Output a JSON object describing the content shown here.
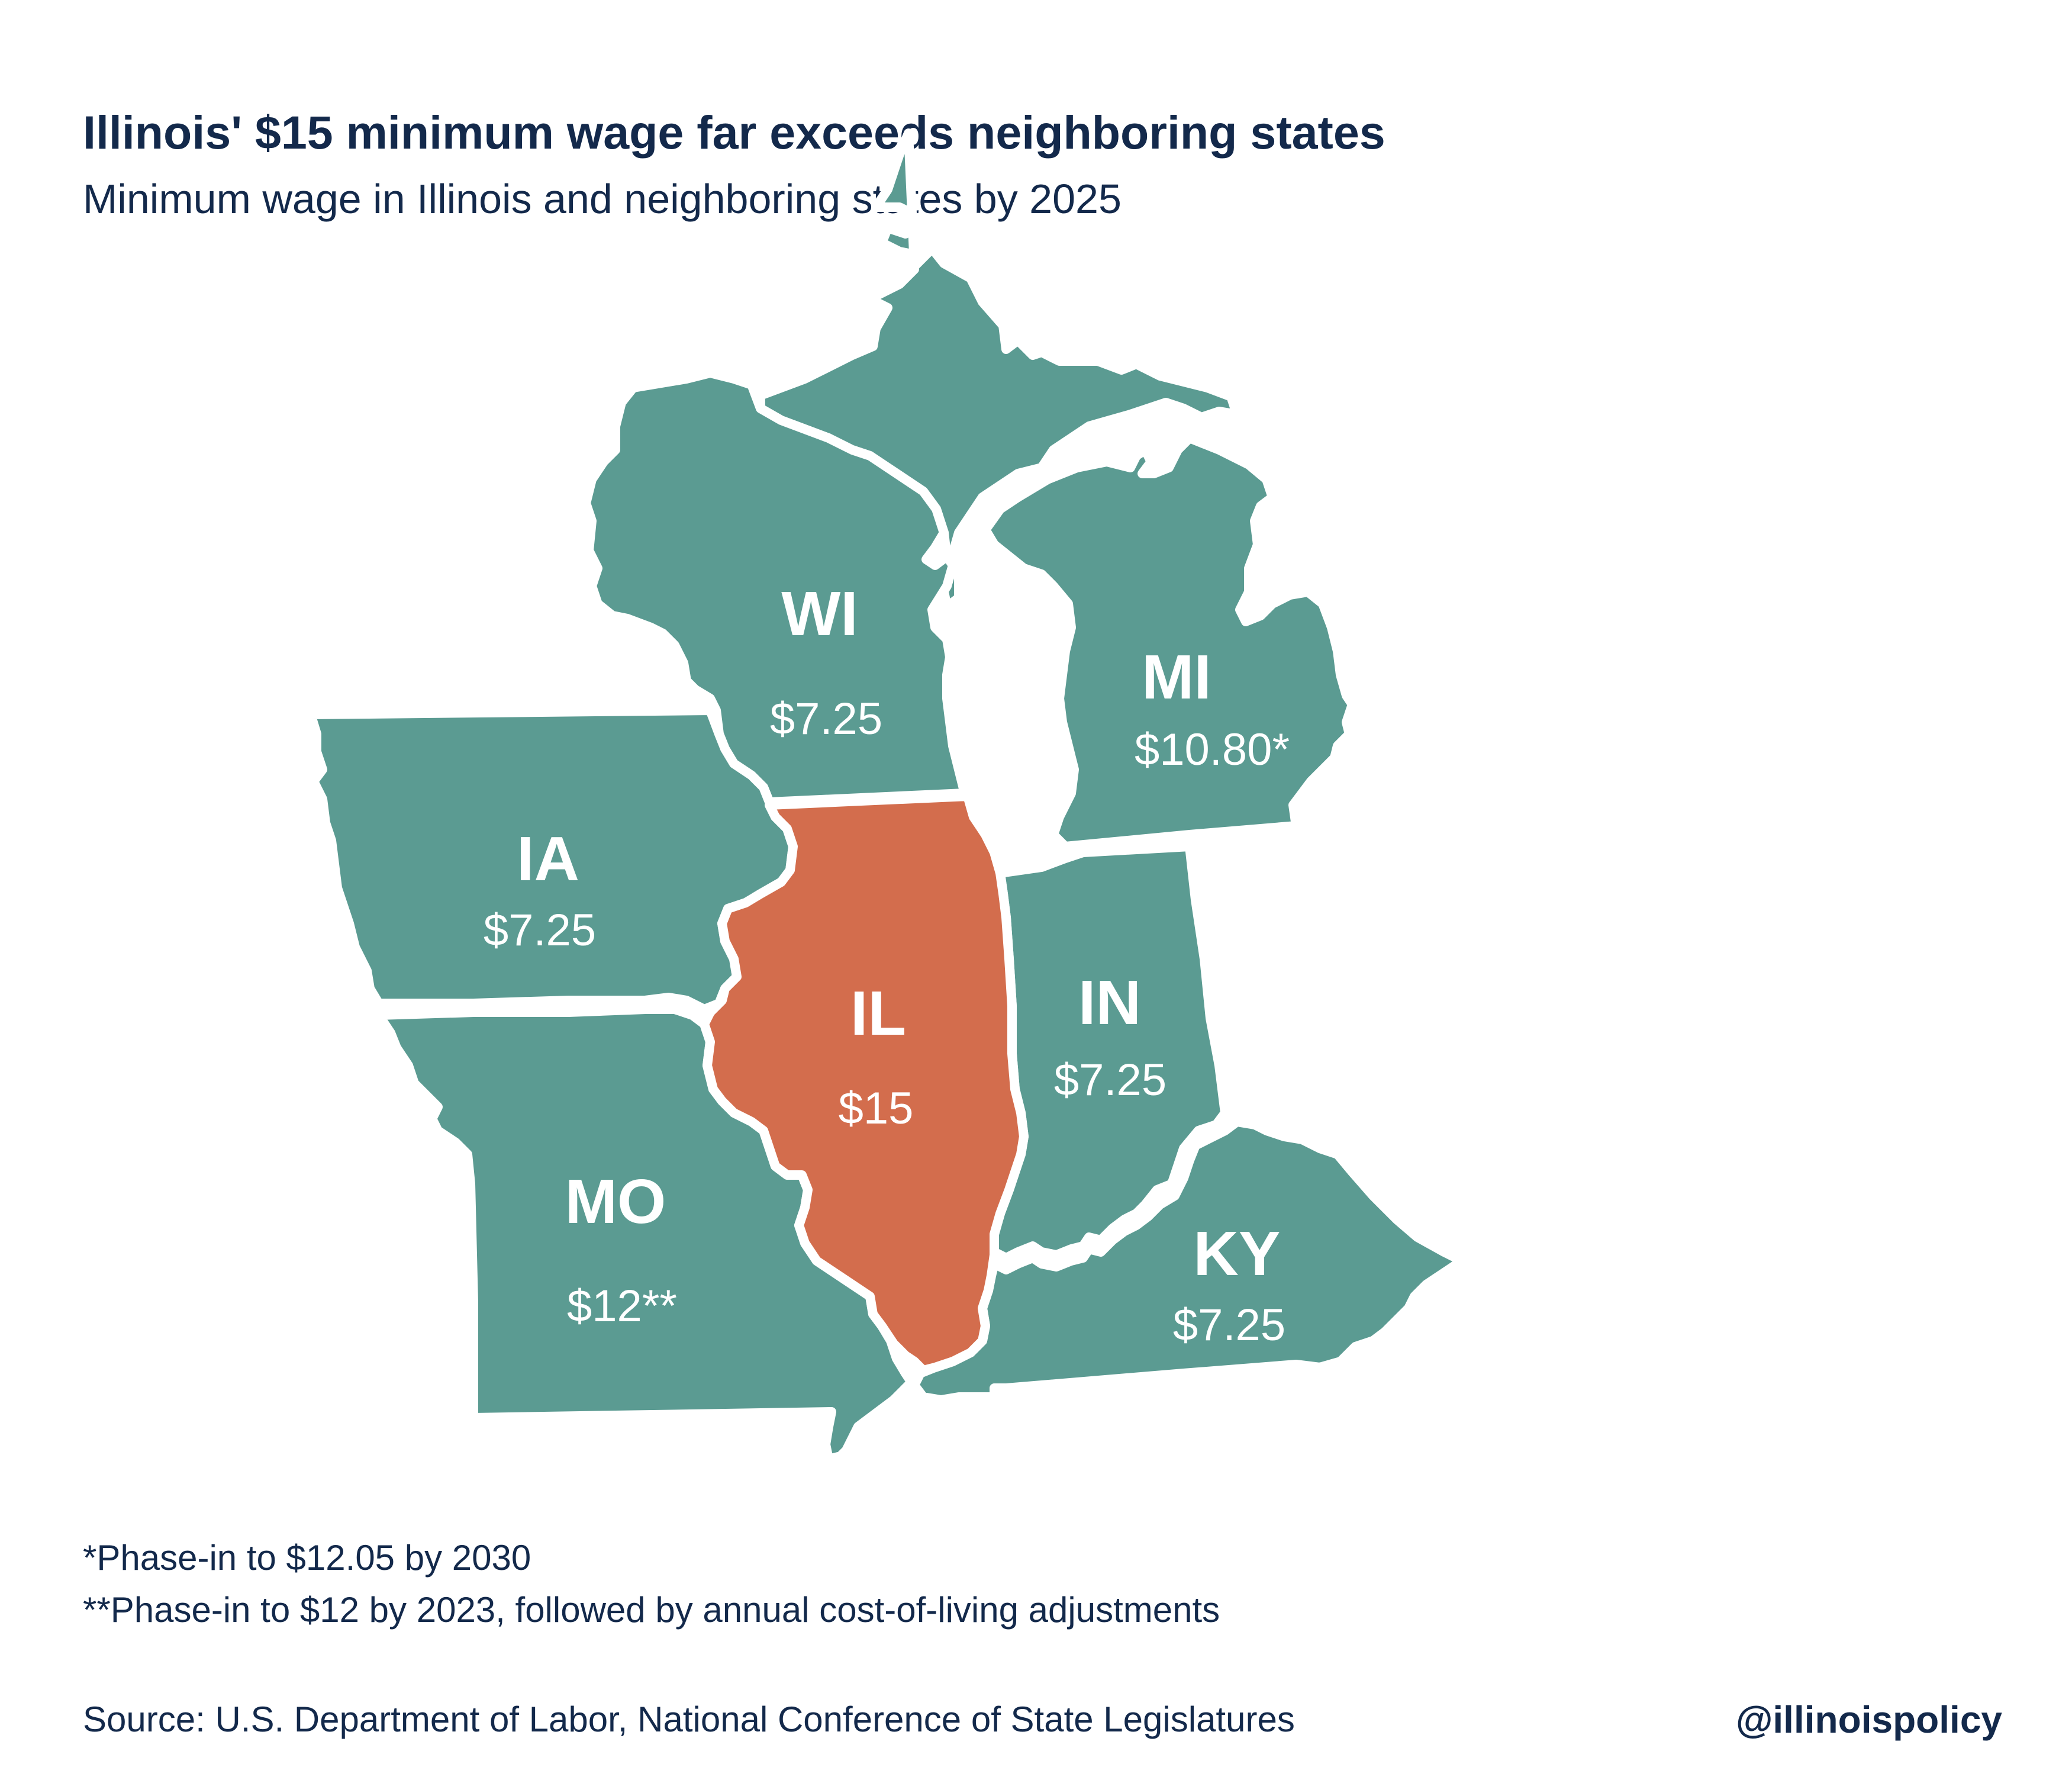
{
  "header": {
    "title": "Illinois' $15 minimum wage far exceeds neighboring states",
    "subtitle": "Minimum wage in Illinois and neighboring states by 2025"
  },
  "colors": {
    "neighbor_fill": "#5b9b92",
    "illinois_fill": "#d36d4d",
    "border": "#ffffff",
    "text": "#13294b"
  },
  "states": {
    "WI": {
      "abbr": "WI",
      "wage": "$7.25"
    },
    "MI": {
      "abbr": "MI",
      "wage": "$10.80*"
    },
    "IA": {
      "abbr": "IA",
      "wage": "$7.25"
    },
    "IL": {
      "abbr": "IL",
      "wage": "$15"
    },
    "IN": {
      "abbr": "IN",
      "wage": "$7.25"
    },
    "MO": {
      "abbr": "MO",
      "wage": "$12**"
    },
    "KY": {
      "abbr": "KY",
      "wage": "$7.25"
    }
  },
  "footnotes": {
    "note1": "*Phase-in to $12.05 by 2030",
    "note2": "**Phase-in to $12 by 2023, followed by annual cost-of-living adjustments"
  },
  "footer": {
    "source": "Source:  U.S. Department of Labor, National Conference of State Legislatures",
    "handle": "@illinoispolicy"
  }
}
